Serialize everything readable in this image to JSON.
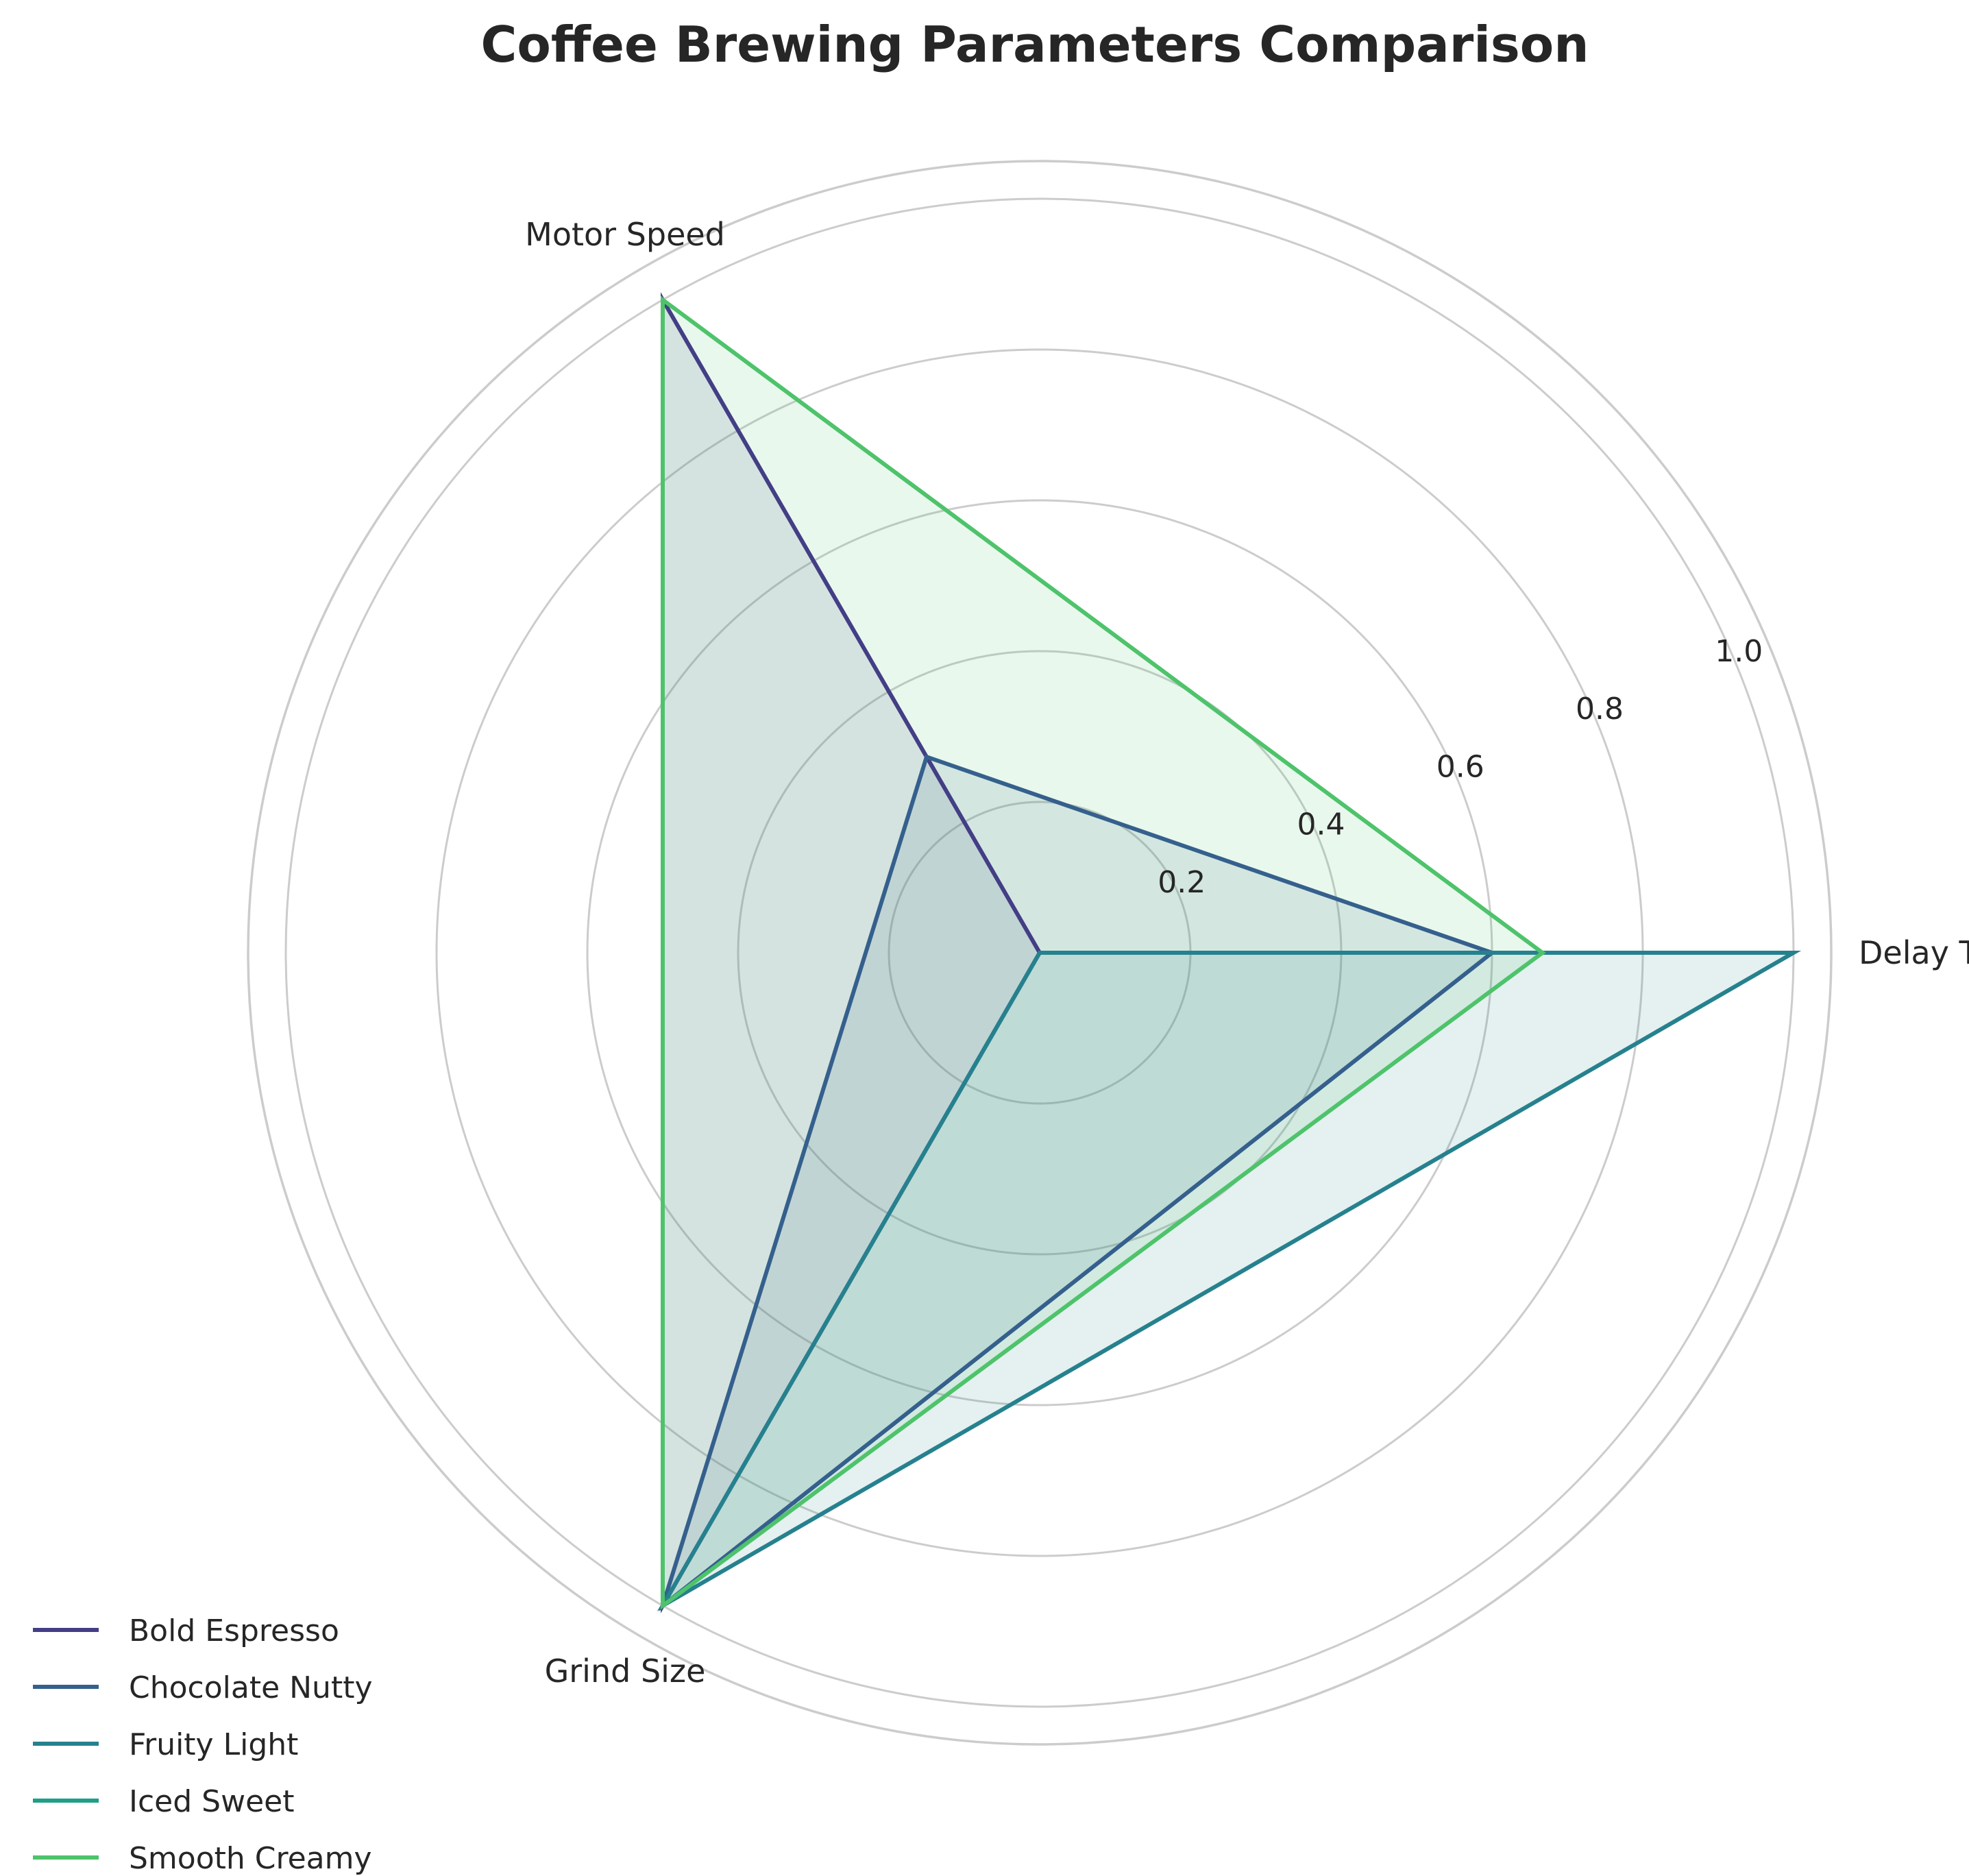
{
  "chart_data": {
    "type": "radar",
    "title": "Coffee Brewing Parameters Comparison",
    "axes": [
      "Delay Time",
      "Motor Speed",
      "Grind Size"
    ],
    "rlim": [
      0,
      1.05
    ],
    "rticks": [
      0.2,
      0.4,
      0.6,
      0.8,
      1.0
    ],
    "rtick_labels": [
      "0.2",
      "0.4",
      "0.6",
      "0.8",
      "1.0"
    ],
    "legend_position": "bottom-left",
    "grid": true,
    "series": [
      {
        "name": "Bold Espresso",
        "values": [
          0.0,
          1.0,
          1.0
        ],
        "color": "#433e85"
      },
      {
        "name": "Chocolate Nutty",
        "values": [
          0.6,
          0.3,
          1.0
        ],
        "color": "#35608d"
      },
      {
        "name": "Fruity Light",
        "values": [
          1.0,
          0.0,
          1.0
        ],
        "color": "#26818e"
      },
      {
        "name": "Iced Sweet",
        "values": [
          0.0,
          0.0,
          0.0
        ],
        "color": "#1f9e89"
      },
      {
        "name": "Smooth Creamy",
        "values": [
          0.667,
          1.0,
          1.0
        ],
        "color": "#4ec36b"
      }
    ]
  }
}
